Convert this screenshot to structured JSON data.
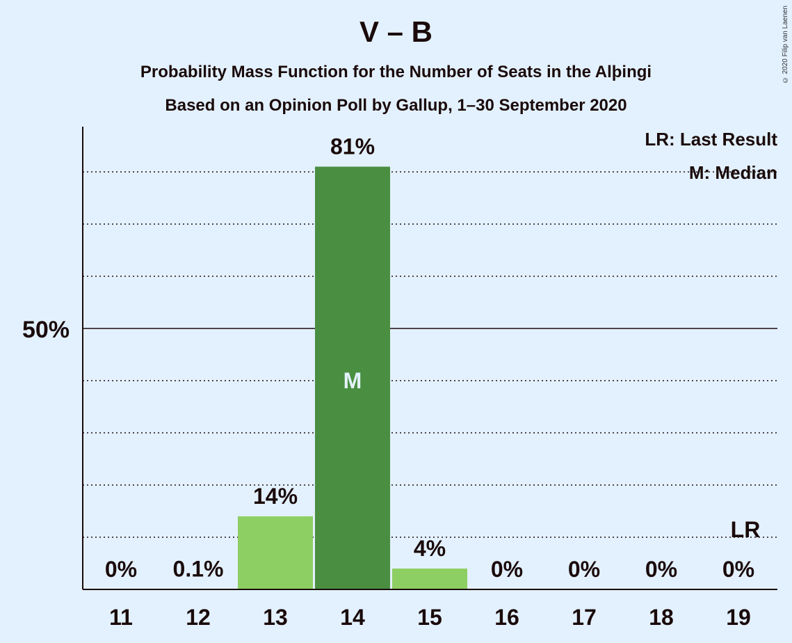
{
  "chart_data": {
    "type": "bar",
    "title": "V – B",
    "subtitle": "Probability Mass Function for the Number of Seats in the Alþingi",
    "subtitle2": "Based on an Opinion Poll by Gallup, 1–30 September 2020",
    "copyright": "© 2020 Filip van Laenen",
    "categories": [
      "11",
      "12",
      "13",
      "14",
      "15",
      "16",
      "17",
      "18",
      "19"
    ],
    "values": [
      0,
      0.1,
      14,
      81,
      4,
      0,
      0,
      0,
      0
    ],
    "data_labels": [
      "0%",
      "0.1%",
      "14%",
      "81%",
      "4%",
      "0%",
      "0%",
      "0%",
      "0%"
    ],
    "median_category": "14",
    "median_marker": "M",
    "last_result_category": "19",
    "last_result_marker": "LR",
    "ylim": [
      0,
      88
    ],
    "y_tick_label": "50%",
    "y_tick_value": 50,
    "gridline_step": 10,
    "legend": [
      "LR: Last Result",
      "M: Median"
    ],
    "legend_position": "top-right",
    "colors": {
      "median_bar": "#4a8f41",
      "other_bar": "#8ecf63",
      "background": "#e3f1ff",
      "text": "#1a0a0a",
      "median_text": "#e3f1ff"
    }
  }
}
